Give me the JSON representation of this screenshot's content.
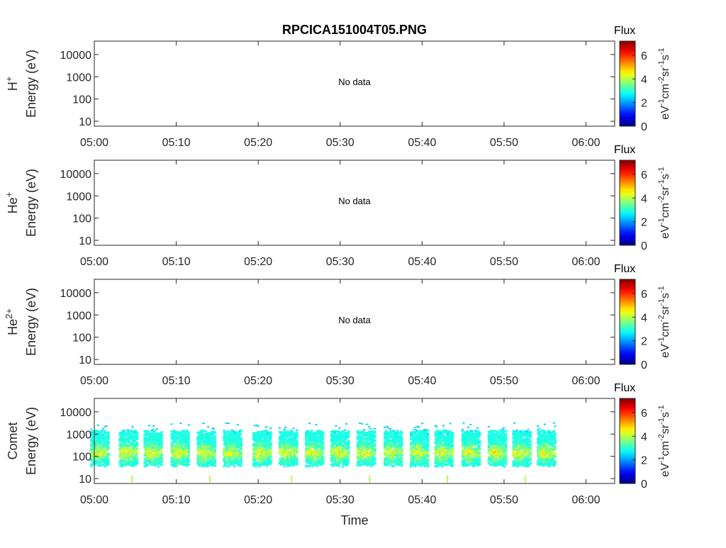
{
  "title": "RPCICA151004T05.PNG",
  "chart_data": {
    "type": "heatmap",
    "title": "RPCICA151004T05.PNG",
    "xlabel": "Time",
    "x_ticks": [
      "05:00",
      "05:10",
      "05:20",
      "05:30",
      "05:40",
      "05:50",
      "06:00"
    ],
    "xlim_minutes": [
      0,
      63.5
    ],
    "y_scale": "log",
    "y_ticks": [
      "10000",
      "1000",
      "100",
      "10"
    ],
    "ylim": [
      6,
      40000
    ],
    "colorbar": {
      "title": "Flux",
      "label_html": "eV<sup>-1</sup>cm<sup>-2</sup>sr<sup>-1</sup>s<sup>-1</sup>",
      "ticks": [
        "6",
        "4",
        "2",
        "0"
      ],
      "range": [
        0,
        7.2
      ],
      "colormap": "jet"
    },
    "panels": [
      {
        "species": "H",
        "species_sup": "+",
        "ylabel": "Energy (eV)",
        "note": "No data"
      },
      {
        "species": "He",
        "species_sup": "+",
        "ylabel": "Energy (eV)",
        "note": "No data"
      },
      {
        "species": "He",
        "species_sup": "2+",
        "ylabel": "Energy (eV)",
        "note": "No data"
      },
      {
        "species": "Comet",
        "species_sup": "",
        "ylabel": "Energy (eV)",
        "note": "",
        "bursts_minutes": [
          0.5,
          4.0,
          7.0,
          10.3,
          13.5,
          16.7,
          20.3,
          23.5,
          26.7,
          29.8,
          33.0,
          36.3,
          39.5,
          42.5,
          45.8,
          49.0,
          52.0,
          55.0
        ]
      }
    ]
  }
}
